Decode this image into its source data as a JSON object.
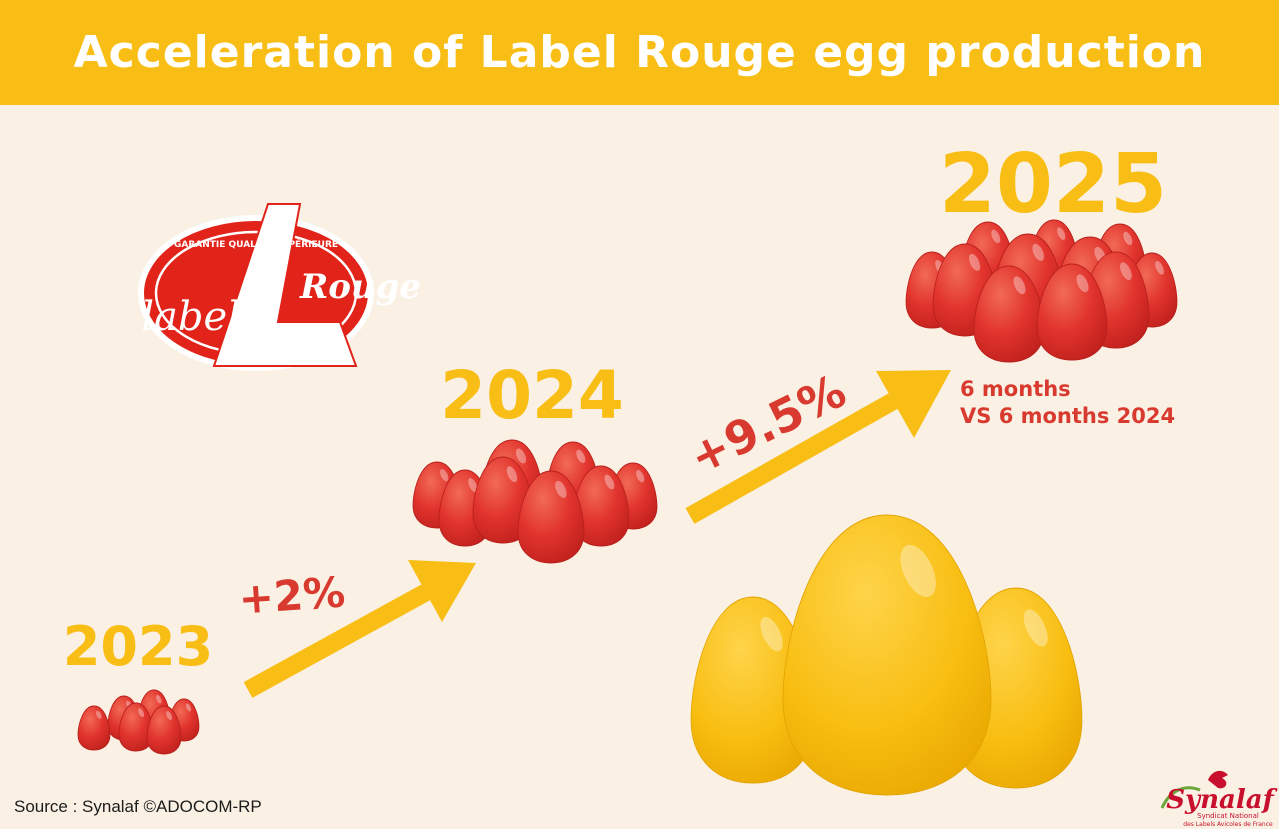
{
  "header": {
    "title": "Acceleration of Label Rouge egg production"
  },
  "logo": {
    "name": "label-rouge-logo",
    "top_text": "GARANTIE QUALITÉ SUPÉRIEURE",
    "word_left": "label",
    "word_right": "Rouge"
  },
  "years": [
    {
      "label": "2023"
    },
    {
      "label": "2024"
    },
    {
      "label": "2025"
    }
  ],
  "growth": [
    {
      "label": "+2%"
    },
    {
      "label": "+9.5%"
    }
  ],
  "note": {
    "line1": "6 months",
    "line2": "VS 6 months 2024"
  },
  "footer": {
    "source": "Source : Synalaf ©ADOCOM-RP",
    "brand": "Synalaf",
    "brand_sub1": "Syndicat National",
    "brand_sub2": "des Labels Avicoles de France"
  },
  "colors": {
    "banner": "#F9BE16",
    "background": "#FAF1E4",
    "egg_red": "#E1332D",
    "egg_gold": "#F8BE12",
    "arrow": "#F9BE16",
    "accent_text": "#D93A2F"
  }
}
